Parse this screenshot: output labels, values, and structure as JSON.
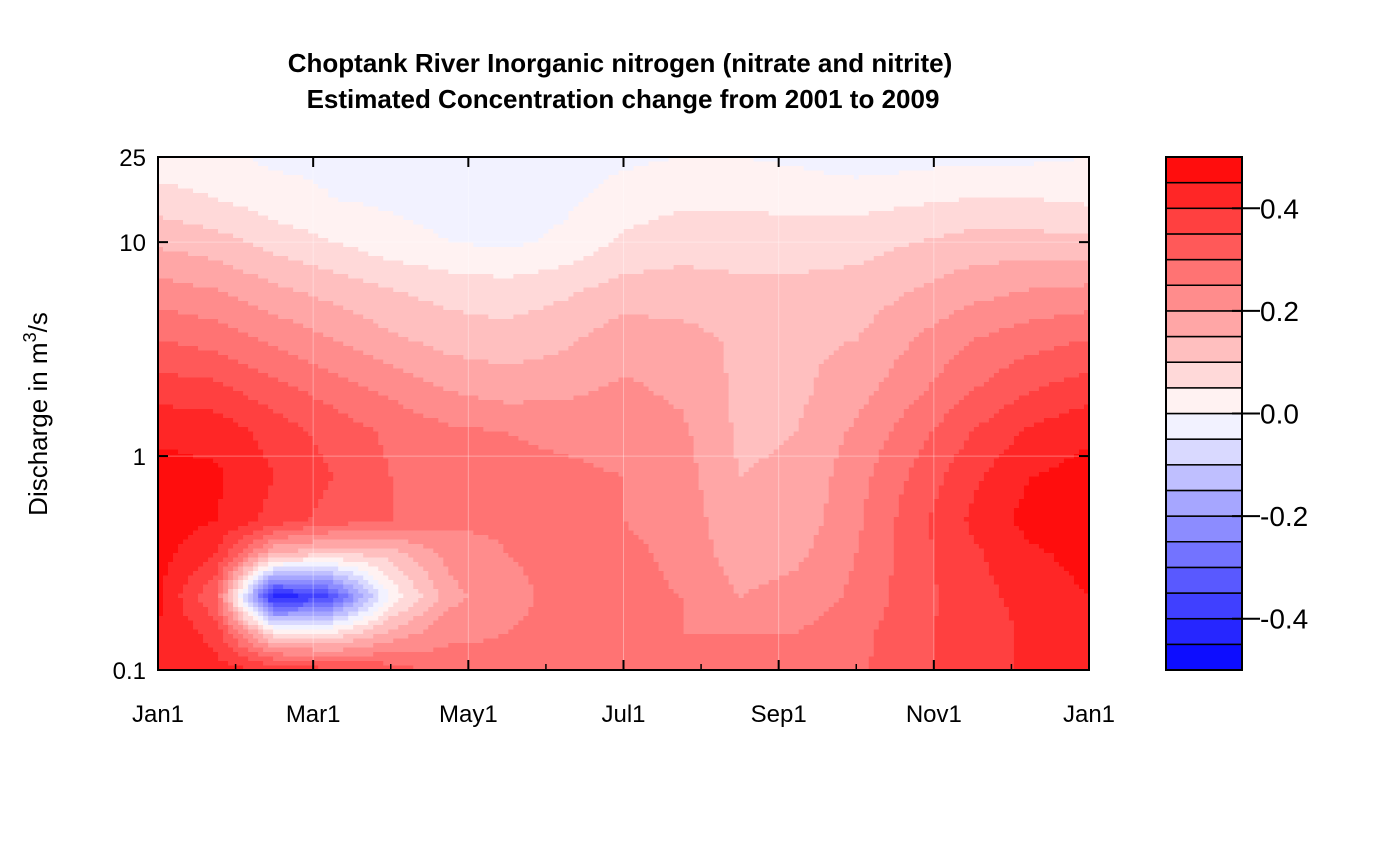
{
  "chart_data": {
    "type": "heatmap",
    "title_line1": "Choptank River   Inorganic nitrogen (nitrate and nitrite)",
    "title_line2": "Estimated Concentration change from 2001 to 2009",
    "ylabel_prefix": "Discharge in m",
    "ylabel_sup": "3",
    "ylabel_suffix": "/s",
    "y_scale": "log",
    "ylim": [
      0.1,
      25
    ],
    "xlim": [
      0,
      12
    ],
    "x_ticks": [
      {
        "value": 0,
        "label": "Jan1"
      },
      {
        "value": 2,
        "label": "Mar1"
      },
      {
        "value": 4,
        "label": "May1"
      },
      {
        "value": 6,
        "label": "Jul1"
      },
      {
        "value": 8,
        "label": "Sep1"
      },
      {
        "value": 10,
        "label": "Nov1"
      },
      {
        "value": 12,
        "label": "Jan1"
      }
    ],
    "y_ticks": [
      {
        "value": 0.1,
        "label": "0.1"
      },
      {
        "value": 1,
        "label": "1"
      },
      {
        "value": 10,
        "label": "10"
      },
      {
        "value": 25,
        "label": "25"
      }
    ],
    "grid": true,
    "x": [
      0,
      0.75,
      1.5,
      2.25,
      3,
      3.75,
      4.5,
      5.25,
      6,
      6.75,
      7.5,
      8.25,
      9,
      9.75,
      10.5,
      11.25,
      12
    ],
    "y": [
      0.1,
      0.15,
      0.22,
      0.35,
      0.5,
      0.8,
      1.3,
      2,
      3.5,
      6,
      10,
      16,
      25
    ],
    "z": [
      [
        0.43,
        0.42,
        0.4,
        0.36,
        0.33,
        0.27,
        0.26,
        0.26,
        0.25,
        0.25,
        0.25,
        0.27,
        0.29,
        0.34,
        0.37,
        0.41,
        0.44
      ],
      [
        0.45,
        0.38,
        0.05,
        0.05,
        0.16,
        0.24,
        0.25,
        0.26,
        0.25,
        0.25,
        0.25,
        0.25,
        0.28,
        0.34,
        0.37,
        0.41,
        0.44
      ],
      [
        0.46,
        0.3,
        -0.45,
        -0.35,
        0.01,
        0.18,
        0.24,
        0.26,
        0.26,
        0.25,
        0.2,
        0.22,
        0.26,
        0.33,
        0.38,
        0.42,
        0.45
      ],
      [
        0.47,
        0.4,
        0.15,
        0.1,
        0.12,
        0.22,
        0.25,
        0.26,
        0.26,
        0.24,
        0.17,
        0.19,
        0.25,
        0.33,
        0.39,
        0.44,
        0.47
      ],
      [
        0.48,
        0.45,
        0.38,
        0.33,
        0.3,
        0.26,
        0.26,
        0.26,
        0.25,
        0.23,
        0.16,
        0.17,
        0.24,
        0.33,
        0.41,
        0.47,
        0.48
      ],
      [
        0.47,
        0.46,
        0.4,
        0.35,
        0.3,
        0.26,
        0.26,
        0.26,
        0.25,
        0.22,
        0.15,
        0.16,
        0.23,
        0.31,
        0.39,
        0.45,
        0.47
      ],
      [
        0.44,
        0.43,
        0.38,
        0.33,
        0.29,
        0.26,
        0.25,
        0.24,
        0.23,
        0.21,
        0.14,
        0.15,
        0.21,
        0.28,
        0.35,
        0.41,
        0.44
      ],
      [
        0.38,
        0.37,
        0.32,
        0.28,
        0.24,
        0.2,
        0.18,
        0.19,
        0.21,
        0.19,
        0.14,
        0.14,
        0.18,
        0.24,
        0.3,
        0.35,
        0.38
      ],
      [
        0.3,
        0.28,
        0.24,
        0.2,
        0.16,
        0.13,
        0.12,
        0.14,
        0.18,
        0.17,
        0.14,
        0.14,
        0.15,
        0.2,
        0.25,
        0.28,
        0.3
      ],
      [
        0.22,
        0.2,
        0.16,
        0.13,
        0.1,
        0.08,
        0.07,
        0.09,
        0.12,
        0.12,
        0.11,
        0.11,
        0.12,
        0.15,
        0.18,
        0.2,
        0.21
      ],
      [
        0.14,
        0.12,
        0.08,
        0.05,
        0.02,
        0.0,
        -0.01,
        0.01,
        0.06,
        0.08,
        0.08,
        0.08,
        0.08,
        0.1,
        0.12,
        0.12,
        0.11
      ],
      [
        0.07,
        0.05,
        0.02,
        0.0,
        -0.01,
        -0.02,
        -0.02,
        -0.01,
        0.02,
        0.04,
        0.04,
        0.03,
        0.03,
        0.04,
        0.05,
        0.05,
        0.04
      ],
      [
        0.02,
        0.01,
        -0.01,
        -0.01,
        -0.02,
        -0.02,
        -0.02,
        -0.02,
        -0.01,
        0.0,
        0.0,
        -0.01,
        -0.03,
        -0.02,
        -0.01,
        -0.01,
        0.0
      ]
    ],
    "levels": [
      -0.5,
      -0.45,
      -0.4,
      -0.35,
      -0.3,
      -0.25,
      -0.2,
      -0.15,
      -0.1,
      -0.05,
      0.0,
      0.05,
      0.1,
      0.15,
      0.2,
      0.25,
      0.3,
      0.35,
      0.4,
      0.45,
      0.5
    ],
    "colorbar_ticks": [
      {
        "value": 0.4,
        "label": "0.4"
      },
      {
        "value": 0.2,
        "label": "0.2"
      },
      {
        "value": 0.0,
        "label": "0.0"
      },
      {
        "value": -0.2,
        "label": "-0.2"
      },
      {
        "value": -0.4,
        "label": "-0.4"
      }
    ],
    "colors": {
      "negative_end": "#0000ff",
      "zero": "#ffffff",
      "positive_end": "#ff0000"
    }
  }
}
